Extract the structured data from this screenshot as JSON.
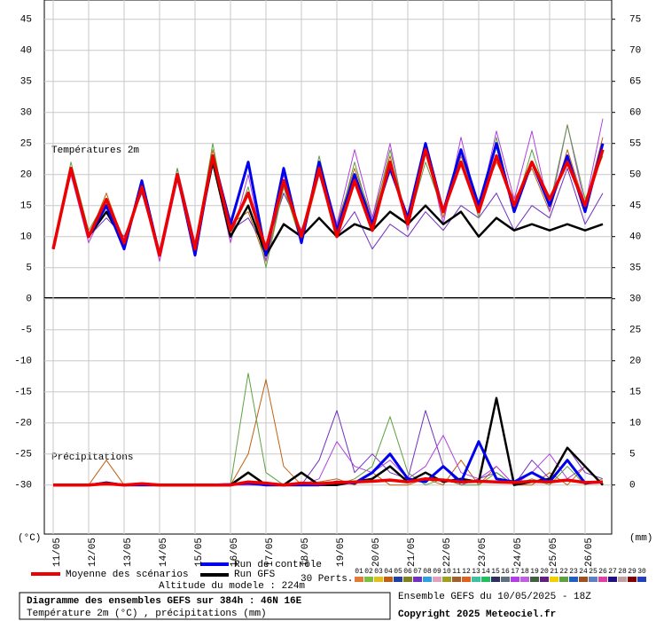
{
  "chart_data": {
    "type": "line",
    "temp_label": "Températures 2m",
    "precip_label": "Précipitations",
    "ylabel": "(°C)",
    "y2label": "(mm)",
    "xlim": [
      0,
      384
    ],
    "xticks": [
      {
        "value": 6,
        "label": "11/05"
      },
      {
        "value": 30,
        "label": "12/05"
      },
      {
        "value": 54,
        "label": "13/05"
      },
      {
        "value": 78,
        "label": "14/05"
      },
      {
        "value": 102,
        "label": "15/05"
      },
      {
        "value": 126,
        "label": "16/05"
      },
      {
        "value": 150,
        "label": "17/05"
      },
      {
        "value": 174,
        "label": "18/05"
      },
      {
        "value": 198,
        "label": "19/05"
      },
      {
        "value": 222,
        "label": "20/05"
      },
      {
        "value": 246,
        "label": "21/05"
      },
      {
        "value": 270,
        "label": "22/05"
      },
      {
        "value": 294,
        "label": "23/05"
      },
      {
        "value": 318,
        "label": "24/05"
      },
      {
        "value": 342,
        "label": "25/05"
      },
      {
        "value": 366,
        "label": "26/05"
      }
    ],
    "ylim": [
      -37.9,
      48.1
    ],
    "yticks": [
      45,
      40,
      35,
      30,
      25,
      20,
      15,
      10,
      5,
      0,
      -5,
      -10,
      -15,
      -20,
      -25,
      -30
    ],
    "y2lim": [
      -7.9,
      78.1
    ],
    "y2ticks": [
      75,
      70,
      65,
      60,
      55,
      50,
      45,
      40,
      35,
      30,
      25,
      20,
      15,
      10,
      5,
      0
    ],
    "grid": true,
    "x": [
      6,
      18,
      30,
      42,
      54,
      66,
      78,
      90,
      102,
      114,
      126,
      138,
      150,
      162,
      174,
      186,
      198,
      210,
      222,
      234,
      246,
      258,
      270,
      282,
      294,
      306,
      318,
      330,
      342,
      354,
      366,
      378
    ],
    "perts_label": "30 Perts.",
    "perts": [
      {
        "name": "01",
        "color": "#e07b39"
      },
      {
        "name": "02",
        "color": "#7fbf3f"
      },
      {
        "name": "03",
        "color": "#e0c020"
      },
      {
        "name": "04",
        "color": "#c06010",
        "values": [
          8,
          20,
          10,
          17,
          9,
          18,
          7,
          20,
          9,
          24,
          12,
          14,
          6,
          18,
          9,
          20,
          12,
          21,
          13,
          23,
          11,
          24,
          13,
          23,
          15,
          22,
          16,
          21,
          14,
          24,
          15,
          26
        ],
        "precip": [
          0,
          0,
          0,
          4,
          0,
          0,
          0,
          0,
          0,
          0,
          0,
          5,
          17,
          3,
          0,
          0.5,
          1,
          0,
          2,
          0,
          0,
          1,
          0,
          4,
          0,
          3,
          0,
          0,
          2,
          0,
          3,
          0
        ]
      },
      {
        "name": "05",
        "color": "#2040a0"
      },
      {
        "name": "06",
        "color": "#808020"
      },
      {
        "name": "07",
        "color": "#7030c0",
        "values": [
          8,
          21,
          10,
          13,
          10,
          17,
          7,
          21,
          9,
          22,
          11,
          13,
          8,
          17,
          11,
          20,
          10,
          14,
          8,
          12,
          10,
          14,
          11,
          15,
          13,
          17,
          11,
          15,
          13,
          21,
          12,
          17
        ],
        "precip": [
          0,
          0,
          0,
          0,
          0,
          0,
          0,
          0,
          0,
          0,
          0,
          0,
          0,
          0,
          0,
          4,
          12,
          2,
          5,
          2,
          1,
          12,
          3,
          0,
          1,
          2,
          0,
          4,
          1,
          6,
          2,
          1
        ]
      },
      {
        "name": "08",
        "color": "#30a0e0"
      },
      {
        "name": "09",
        "color": "#e0a0c0"
      },
      {
        "name": "10",
        "color": "#a0a020"
      },
      {
        "name": "11",
        "color": "#a06030"
      },
      {
        "name": "12",
        "color": "#e06020"
      },
      {
        "name": "13",
        "color": "#40c0a0"
      },
      {
        "name": "14",
        "color": "#20c060"
      },
      {
        "name": "15",
        "color": "#303060"
      },
      {
        "name": "16",
        "color": "#607080"
      },
      {
        "name": "17",
        "color": "#b040e0",
        "values": [
          8,
          20,
          9,
          15,
          9,
          18,
          6,
          19,
          8,
          22,
          9,
          20,
          6,
          20,
          10,
          22,
          12,
          24,
          13,
          25,
          11,
          25,
          12,
          26,
          14,
          27,
          16,
          27,
          14,
          28,
          15,
          29
        ],
        "precip": [
          0,
          0,
          0,
          0,
          0,
          0,
          0,
          0,
          0,
          0,
          0,
          0,
          0,
          0,
          0,
          1,
          7,
          3,
          2,
          4,
          1,
          3,
          8,
          2,
          1,
          3,
          0,
          2,
          5,
          1,
          3,
          0
        ]
      },
      {
        "name": "18",
        "color": "#c060e0"
      },
      {
        "name": "19",
        "color": "#406040"
      },
      {
        "name": "20",
        "color": "#602080"
      },
      {
        "name": "21",
        "color": "#f0d000"
      },
      {
        "name": "22",
        "color": "#60a040",
        "values": [
          8,
          22,
          11,
          16,
          9,
          19,
          7,
          21,
          8,
          25,
          10,
          18,
          5,
          18,
          9,
          23,
          11,
          22,
          12,
          24,
          12,
          22,
          14,
          24,
          13,
          26,
          14,
          24,
          15,
          28,
          16,
          23
        ],
        "precip": [
          0,
          0,
          0,
          0,
          0,
          0,
          0,
          0,
          0,
          0,
          0,
          18,
          2,
          0,
          0,
          0.5,
          0,
          1,
          3,
          11,
          2,
          0,
          1,
          0,
          0,
          2,
          0,
          1,
          0,
          3,
          0,
          1
        ]
      },
      {
        "name": "23",
        "color": "#2060c0"
      },
      {
        "name": "24",
        "color": "#a05020"
      },
      {
        "name": "25",
        "color": "#6080c0"
      },
      {
        "name": "26",
        "color": "#e040a0"
      },
      {
        "name": "27",
        "color": "#201080"
      },
      {
        "name": "28",
        "color": "#c0a0a0"
      },
      {
        "name": "29",
        "color": "#800000"
      },
      {
        "name": "30",
        "color": "#2040c0"
      }
    ],
    "series": [
      {
        "name": "Moyenne des scénarios",
        "color": "#ee0000",
        "values": [
          8,
          21,
          10,
          16,
          9,
          18,
          7,
          20,
          8,
          23,
          11,
          17,
          8,
          19,
          10,
          21,
          10,
          19,
          11,
          22,
          12,
          24,
          14,
          22,
          14,
          23,
          15,
          22,
          16,
          22,
          15,
          24
        ],
        "precip": [
          0,
          0,
          0,
          0.2,
          0,
          0.2,
          0,
          0,
          0,
          0,
          0,
          0.5,
          0.3,
          0,
          0.3,
          0.2,
          0.4,
          0.5,
          0.6,
          0.8,
          0.5,
          1,
          0.8,
          0.5,
          0.6,
          0.5,
          0.4,
          0.6,
          0.5,
          0.8,
          0.4,
          0.5
        ]
      },
      {
        "name": "Run de contrôle",
        "color": "#0000ee",
        "values": [
          8,
          21,
          10,
          15,
          8,
          19,
          7,
          20,
          7,
          23,
          12,
          22,
          7,
          21,
          9,
          22,
          11,
          20,
          12,
          21,
          13,
          25,
          14,
          24,
          15,
          25,
          14,
          22,
          15,
          23,
          14,
          25
        ],
        "precip": [
          0,
          0,
          0,
          0.3,
          0,
          0,
          0,
          0,
          0,
          0,
          0.1,
          0.3,
          0,
          0,
          0,
          0,
          0.5,
          0.3,
          2,
          5,
          1,
          0.5,
          3,
          0.5,
          7,
          1,
          0.5,
          2,
          0.5,
          4,
          0.3,
          0.5
        ]
      },
      {
        "name": "Run GFS",
        "color": "#000000",
        "values": [
          8,
          21,
          10,
          14,
          9,
          18,
          7,
          20,
          8,
          22,
          10,
          15,
          7,
          12,
          10,
          13,
          10,
          12,
          11,
          14,
          12,
          15,
          12,
          14,
          10,
          13,
          11,
          12,
          11,
          12,
          11,
          12
        ],
        "precip": [
          0,
          0,
          0,
          0.4,
          0,
          0,
          0,
          0,
          0,
          0,
          0,
          2,
          0,
          0,
          2,
          0,
          0,
          0.5,
          1,
          3,
          0.5,
          2,
          0.5,
          1,
          0.5,
          14,
          0,
          0.5,
          1,
          6,
          3,
          0
        ]
      }
    ],
    "altitude": "Altitude du modele : 224m",
    "box_title": "Diagramme des ensembles GEFS sur 384h : 46N 16E",
    "box_subtitle": "Température 2m (°C) , précipitations (mm)",
    "run_info": "Ensemble GEFS du 10/05/2025 - 18Z",
    "copyright": "Copyright 2025 Meteociel.fr"
  }
}
